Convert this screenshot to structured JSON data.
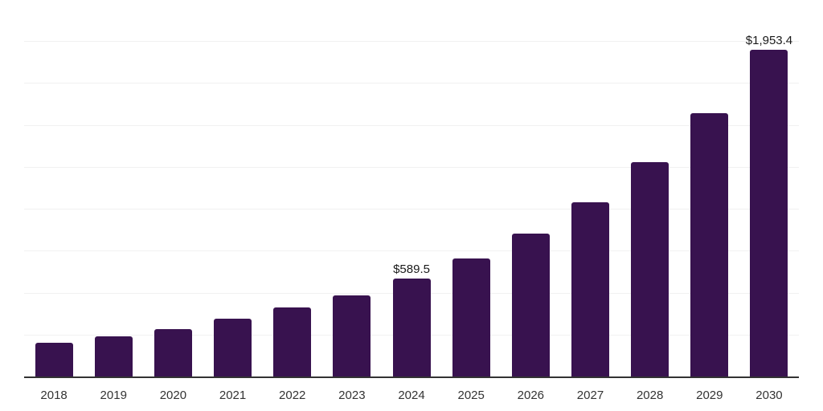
{
  "chart_data": {
    "type": "bar",
    "title": "",
    "categories": [
      "2018",
      "2019",
      "2020",
      "2021",
      "2022",
      "2023",
      "2024",
      "2025",
      "2026",
      "2027",
      "2028",
      "2029",
      "2030"
    ],
    "values": [
      206,
      243,
      289,
      350,
      415,
      487,
      589.5,
      709,
      857,
      1043,
      1285,
      1576,
      1953.4
    ],
    "data_labels": [
      "",
      "",
      "",
      "",
      "",
      "",
      "$589.5",
      "",
      "",
      "",
      "",
      "",
      "$1,953.4"
    ],
    "xlabel": "",
    "ylabel": "",
    "ylim": [
      0,
      2250
    ],
    "grid_step": 250,
    "grid": "horizontal",
    "legend_position": "none",
    "colors": {
      "bar": "#38124F",
      "gridline": "#f1f1f1",
      "axis_line": "#333333",
      "tick_label": "#333333",
      "data_label": "#1a1a1a",
      "background": "#ffffff"
    }
  }
}
